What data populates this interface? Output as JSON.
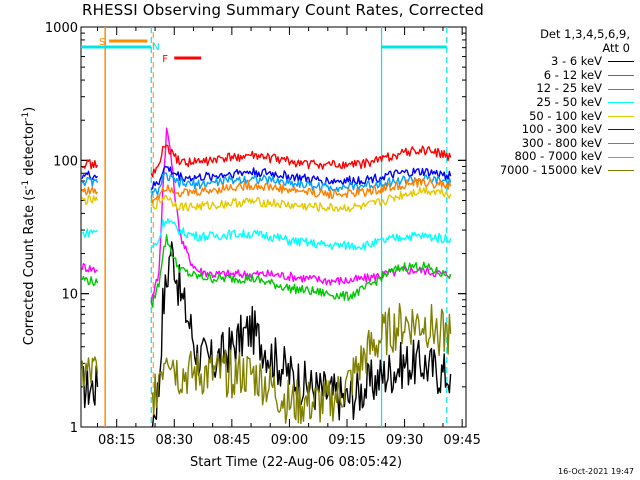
{
  "title": "RHESSI Observing Summary Count Rates, Corrected",
  "timestamp": "16-Oct-2021 19:47",
  "legend": {
    "header_line1": "Det 1,3,4,5,6,9,",
    "header_line2": "Att 0"
  },
  "flags": {
    "saa_label": "S",
    "night_label": "N",
    "flare_label": "F",
    "colors": {
      "saa": "#ff8c00",
      "night": "#00e5e5",
      "flare": "#ff0000"
    }
  },
  "chart_data": {
    "type": "line",
    "title": "RHESSI Observing Summary Count Rates, Corrected",
    "xlabel": "Start Time (22-Aug-06 08:05:42)",
    "ylabel": "Corrected Count Rate (s-1 detector-1)",
    "yscale": "log",
    "ylim": [
      1,
      1000
    ],
    "xlim": [
      "08:05:42",
      "09:46:00"
    ],
    "x_ticks": [
      "08:15",
      "08:30",
      "08:45",
      "09:00",
      "09:15",
      "09:30",
      "09:45"
    ],
    "y_ticks": [
      "1",
      "10",
      "100",
      "1000"
    ],
    "grid": false,
    "legend_position": "right",
    "x": [
      "08:06",
      "08:10",
      "08:12",
      "08:22",
      "08:24",
      "08:26",
      "08:27",
      "08:28",
      "08:29",
      "08:30",
      "08:31",
      "08:32",
      "08:34",
      "08:36",
      "08:40",
      "08:45",
      "08:50",
      "08:55",
      "09:00",
      "09:05",
      "09:10",
      "09:15",
      "09:20",
      "09:25",
      "09:30",
      "09:35",
      "09:40",
      "09:42"
    ],
    "series": [
      {
        "name": "3 - 6 keV",
        "color": "#000000",
        "values": [
          2.0,
          2.0,
          null,
          null,
          1.0,
          2.0,
          8.0,
          12.0,
          22.0,
          18.0,
          12.0,
          9.0,
          6.0,
          3.5,
          3.0,
          4.0,
          5.5,
          3.5,
          2.5,
          2.0,
          1.8,
          1.6,
          2.0,
          2.5,
          3.0,
          3.0,
          2.5,
          2.5
        ]
      },
      {
        "name": "6 - 12 keV",
        "color": "#ff00ff",
        "values": [
          16,
          15,
          null,
          null,
          9,
          14,
          60,
          170,
          120,
          60,
          35,
          25,
          18,
          15,
          14,
          14,
          14,
          14,
          13.5,
          13,
          12.5,
          12.5,
          13,
          14,
          15,
          15,
          14,
          14
        ]
      },
      {
        "name": "12 - 25 keV",
        "color": "#00c800",
        "values": [
          13,
          12,
          null,
          null,
          8,
          12,
          20,
          26,
          22,
          18,
          16,
          15,
          14,
          13.5,
          13,
          13,
          13,
          12,
          11,
          10.5,
          10,
          9.5,
          11,
          14,
          16,
          16,
          14,
          14
        ]
      },
      {
        "name": "25 - 50 keV",
        "color": "#00ffff",
        "values": [
          28,
          30,
          null,
          null,
          22,
          25,
          34,
          36,
          34,
          32,
          30,
          29,
          28,
          27,
          27,
          28,
          28,
          27,
          25,
          24,
          23,
          23,
          23,
          25,
          27,
          27,
          26,
          26
        ]
      },
      {
        "name": "50 - 100 keV",
        "color": "#e6c800",
        "values": [
          50,
          50,
          null,
          null,
          45,
          48,
          52,
          55,
          50,
          48,
          46,
          45,
          45,
          45,
          46,
          48,
          49,
          48,
          46,
          45,
          44,
          44,
          45,
          50,
          56,
          60,
          58,
          56
        ]
      },
      {
        "name": "100 - 300 keV",
        "color": "#0000ff",
        "values": [
          78,
          76,
          null,
          null,
          62,
          68,
          85,
          88,
          84,
          80,
          77,
          75,
          74,
          74,
          76,
          80,
          82,
          80,
          76,
          72,
          70,
          70,
          72,
          76,
          80,
          82,
          78,
          76
        ]
      },
      {
        "name": "300 - 800 keV",
        "color": "#00a0ff",
        "values": [
          70,
          68,
          null,
          null,
          55,
          60,
          74,
          76,
          72,
          70,
          68,
          67,
          66,
          66,
          68,
          71,
          73,
          71,
          68,
          65,
          63,
          63,
          65,
          68,
          71,
          72,
          70,
          68
        ]
      },
      {
        "name": "800 - 7000 keV",
        "color": "#ff7f00",
        "values": [
          60,
          58,
          null,
          null,
          50,
          55,
          62,
          64,
          62,
          60,
          58,
          57,
          57,
          58,
          60,
          63,
          65,
          63,
          60,
          58,
          56,
          56,
          58,
          62,
          66,
          68,
          66,
          64
        ]
      },
      {
        "name": "7000 - 15000 keV",
        "color": "#808000",
        "values": [
          2.5,
          2.5,
          null,
          null,
          1.5,
          2.5,
          3.0,
          4.0,
          3.5,
          3.0,
          2.5,
          2.5,
          2.5,
          2.5,
          2.5,
          2.5,
          2.5,
          2.0,
          1.5,
          1.5,
          1.5,
          2.0,
          3.5,
          5.0,
          6.0,
          6.0,
          5.0,
          5.0
        ]
      },
      {
        "name": "",
        "color": "#ff0000",
        "values": [
          95,
          92,
          null,
          null,
          80,
          88,
          120,
          130,
          115,
          105,
          100,
          98,
          97,
          97,
          100,
          105,
          108,
          104,
          98,
          94,
          92,
          92,
          95,
          105,
          115,
          120,
          112,
          105
        ]
      }
    ],
    "markers": {
      "saa_vertical_line": "08:12",
      "night_start_dashed": "08:24",
      "night_end_solid": "09:24",
      "night_end_dashed": "09:41",
      "saa_bar": [
        "08:13",
        "08:23"
      ],
      "night_bars": [
        [
          "08:05:42",
          "08:24"
        ],
        [
          "09:24",
          "09:41"
        ]
      ],
      "flare_bar": [
        "08:30",
        "08:37"
      ]
    }
  }
}
